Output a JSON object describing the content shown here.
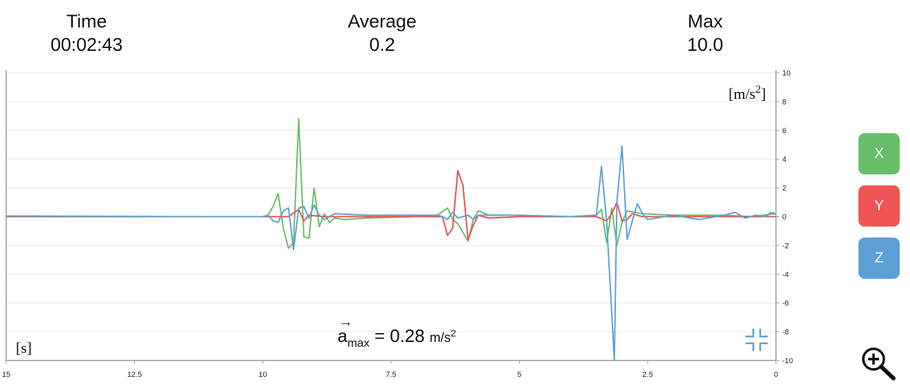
{
  "stats": {
    "time": {
      "label": "Time",
      "value": "00:02:43"
    },
    "average": {
      "label": "Average",
      "value": "0.2"
    },
    "max": {
      "label": "Max",
      "value": "10.0"
    }
  },
  "axis_buttons": [
    {
      "label": "X",
      "color": "#66be66"
    },
    {
      "label": "Y",
      "color": "#f05454"
    },
    {
      "label": "Z",
      "color": "#5ba0d6"
    }
  ],
  "readout": {
    "symbol": "a",
    "subscript": "max",
    "equals": "=",
    "value": "0.28",
    "unit": "m/s",
    "unit_exp": "2"
  },
  "icons": {
    "collapse": "collapse-icon",
    "zoom": "zoom-in-icon"
  },
  "chart_data": {
    "type": "line",
    "x_unit_label": "[s]",
    "y_unit_label": "[m/s",
    "y_unit_exp": "2",
    "y_unit_close": "]",
    "xlim": [
      15,
      0
    ],
    "ylim": [
      -10,
      10
    ],
    "x_ticks": [
      15,
      12.5,
      10,
      7.5,
      5,
      2.5,
      0
    ],
    "x_tick_labels": [
      "15",
      "12.5",
      "10",
      "7.5",
      "5",
      "2.5",
      "0"
    ],
    "y_ticks": [
      10,
      8,
      6,
      4,
      2,
      0,
      -2,
      -4,
      -6,
      -8,
      -10
    ],
    "y_tick_labels": [
      "10",
      "8",
      "6",
      "4",
      "2",
      "0",
      "-2",
      "-4",
      "-6",
      "-8",
      "-10"
    ],
    "grid": true,
    "series": [
      {
        "key": "x",
        "color": "#66be66",
        "points": [
          [
            15,
            0
          ],
          [
            11,
            0
          ],
          [
            10,
            0
          ],
          [
            9.9,
            0.1
          ],
          [
            9.8,
            0.7
          ],
          [
            9.7,
            1.6
          ],
          [
            9.6,
            -0.8
          ],
          [
            9.5,
            -2.2
          ],
          [
            9.4,
            -1.8
          ],
          [
            9.3,
            6.8
          ],
          [
            9.2,
            -1.4
          ],
          [
            9.1,
            -1.5
          ],
          [
            9.0,
            2.0
          ],
          [
            8.9,
            -0.7
          ],
          [
            8.8,
            0.2
          ],
          [
            8.7,
            -0.4
          ],
          [
            8.6,
            -0.1
          ],
          [
            8.4,
            -0.2
          ],
          [
            8.0,
            -0.1
          ],
          [
            7.0,
            0
          ],
          [
            6.6,
            0.1
          ],
          [
            6.4,
            0.6
          ],
          [
            6.3,
            -0.2
          ],
          [
            6.2,
            -0.5
          ],
          [
            6.0,
            -1.7
          ],
          [
            5.9,
            -0.2
          ],
          [
            5.8,
            0.4
          ],
          [
            5.6,
            0.1
          ],
          [
            5.2,
            0.1
          ],
          [
            4.0,
            0
          ],
          [
            3.5,
            0.1
          ],
          [
            3.4,
            0.5
          ],
          [
            3.3,
            -1.8
          ],
          [
            3.2,
            0.6
          ],
          [
            3.1,
            -2.0
          ],
          [
            3.0,
            -0.4
          ],
          [
            2.9,
            0.4
          ],
          [
            2.6,
            0.2
          ],
          [
            2.0,
            0.1
          ],
          [
            1.0,
            0.1
          ],
          [
            0.5,
            0
          ],
          [
            0,
            0.2
          ]
        ]
      },
      {
        "key": "y",
        "color": "#e8524f",
        "points": [
          [
            15,
            0
          ],
          [
            10,
            0
          ],
          [
            9.5,
            0
          ],
          [
            9.3,
            0.5
          ],
          [
            9.2,
            -0.3
          ],
          [
            9.1,
            0.1
          ],
          [
            8.8,
            0
          ],
          [
            7.0,
            0
          ],
          [
            6.5,
            0
          ],
          [
            6.4,
            -1.3
          ],
          [
            6.3,
            -0.8
          ],
          [
            6.2,
            3.2
          ],
          [
            6.1,
            2.2
          ],
          [
            6.0,
            -1.6
          ],
          [
            5.9,
            -0.6
          ],
          [
            5.8,
            0.1
          ],
          [
            5.6,
            -0.1
          ],
          [
            5.0,
            0
          ],
          [
            3.5,
            0
          ],
          [
            3.3,
            -0.3
          ],
          [
            3.2,
            0.2
          ],
          [
            3.1,
            1.0
          ],
          [
            3.0,
            -0.3
          ],
          [
            2.9,
            -0.2
          ],
          [
            2.8,
            0.2
          ],
          [
            2.6,
            0
          ],
          [
            0,
            0
          ]
        ]
      },
      {
        "key": "z",
        "color": "#5ba0d6",
        "points": [
          [
            15,
            0.05
          ],
          [
            11,
            0
          ],
          [
            10,
            0
          ],
          [
            9.9,
            0.1
          ],
          [
            9.8,
            -0.3
          ],
          [
            9.7,
            -0.4
          ],
          [
            9.6,
            0.4
          ],
          [
            9.5,
            0.6
          ],
          [
            9.4,
            -2.3
          ],
          [
            9.3,
            0.6
          ],
          [
            9.2,
            0.7
          ],
          [
            9.1,
            -0.1
          ],
          [
            9.0,
            0.8
          ],
          [
            8.9,
            0.1
          ],
          [
            8.8,
            -0.2
          ],
          [
            8.6,
            0.2
          ],
          [
            8.0,
            0.1
          ],
          [
            7.0,
            0.1
          ],
          [
            6.6,
            0.1
          ],
          [
            6.5,
            0
          ],
          [
            6.4,
            -0.2
          ],
          [
            6.3,
            0.3
          ],
          [
            6.2,
            -0.1
          ],
          [
            6.0,
            0.1
          ],
          [
            5.9,
            -0.2
          ],
          [
            5.8,
            0.1
          ],
          [
            5.0,
            0.1
          ],
          [
            4.0,
            0
          ],
          [
            3.5,
            0.1
          ],
          [
            3.4,
            3.5
          ],
          [
            3.3,
            -0.3
          ],
          [
            3.15,
            -10.0
          ],
          [
            3.1,
            1.0
          ],
          [
            3.0,
            4.9
          ],
          [
            2.9,
            -1.6
          ],
          [
            2.8,
            -0.3
          ],
          [
            2.7,
            0.9
          ],
          [
            2.6,
            0.2
          ],
          [
            2.5,
            -0.2
          ],
          [
            2.0,
            0.1
          ],
          [
            1.5,
            -0.2
          ],
          [
            1.0,
            0.1
          ],
          [
            0.8,
            0.3
          ],
          [
            0.6,
            -0.1
          ],
          [
            0.4,
            0.1
          ],
          [
            0.2,
            0
          ],
          [
            0.1,
            0.3
          ],
          [
            0,
            0.2
          ]
        ]
      }
    ]
  }
}
